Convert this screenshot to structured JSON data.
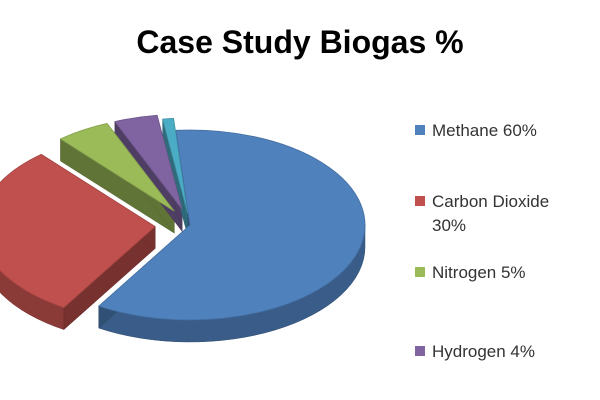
{
  "chart_data": {
    "type": "pie",
    "title": "Case Study Biogas %",
    "categories": [
      "Methane",
      "Carbon Dioxide",
      "Nitrogen",
      "Hydrogen",
      "Other"
    ],
    "values": [
      60,
      30,
      5,
      4,
      1
    ],
    "colors": [
      "#4f81bd",
      "#c0504d",
      "#9bbb59",
      "#8064a2",
      "#4bacc6"
    ],
    "three_d": true,
    "exploded": true,
    "legend_position": "right",
    "legend": [
      {
        "label": "Methane 60%",
        "color": "#4f81bd"
      },
      {
        "label": "Carbon Dioxide\n30%",
        "color": "#c0504d"
      },
      {
        "label": "Nitrogen 5%",
        "color": "#9bbb59"
      },
      {
        "label": "Hydrogen 4%",
        "color": "#8064a2"
      }
    ]
  }
}
